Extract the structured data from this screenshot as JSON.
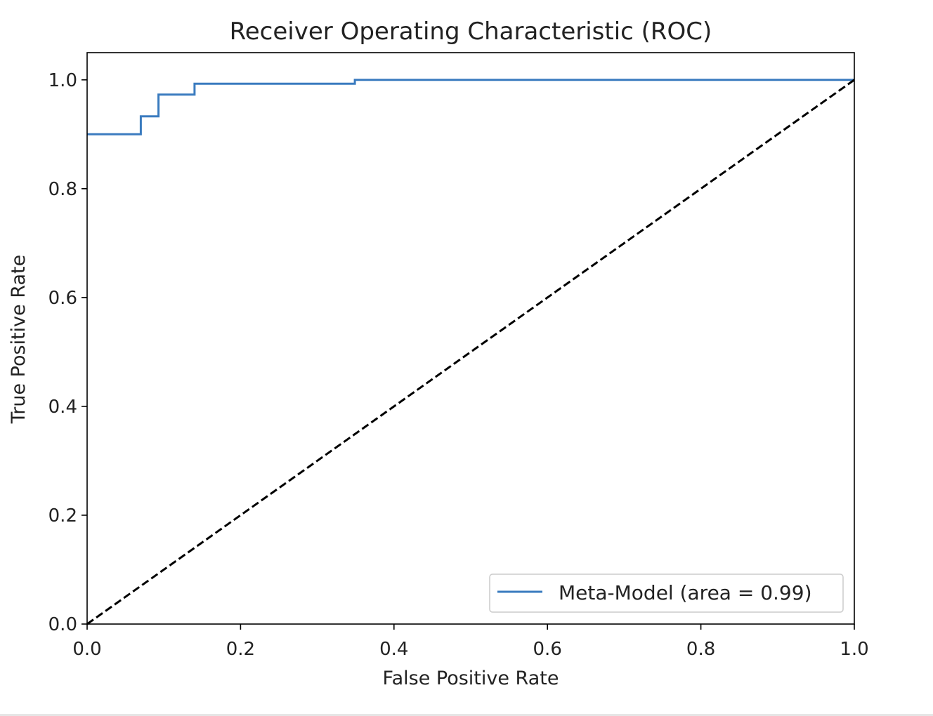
{
  "chart_data": {
    "type": "line",
    "title": "Receiver Operating Characteristic (ROC)",
    "xlabel": "False Positive Rate",
    "ylabel": "True Positive Rate",
    "xlim": [
      0.0,
      1.0
    ],
    "ylim": [
      0.0,
      1.05
    ],
    "xticks": [
      "0.0",
      "0.2",
      "0.4",
      "0.6",
      "0.8",
      "1.0"
    ],
    "yticks": [
      "0.0",
      "0.2",
      "0.4",
      "0.6",
      "0.8",
      "1.0"
    ],
    "grid": false,
    "legend": {
      "position": "lower-right",
      "entries": [
        "Meta-Model (area = 0.99)"
      ]
    },
    "series": [
      {
        "name": "Meta-Model (area = 0.99)",
        "style": "solid",
        "color": "#3a7bbf",
        "x": [
          0.0,
          0.07,
          0.07,
          0.093,
          0.093,
          0.14,
          0.14,
          0.349,
          0.349,
          1.0
        ],
        "y": [
          0.9,
          0.9,
          0.933,
          0.933,
          0.973,
          0.973,
          0.993,
          0.993,
          1.0,
          1.0
        ]
      },
      {
        "style": "dashed",
        "color": "#000000",
        "x": [
          0.0,
          1.0
        ],
        "y": [
          0.0,
          1.0
        ]
      }
    ]
  }
}
